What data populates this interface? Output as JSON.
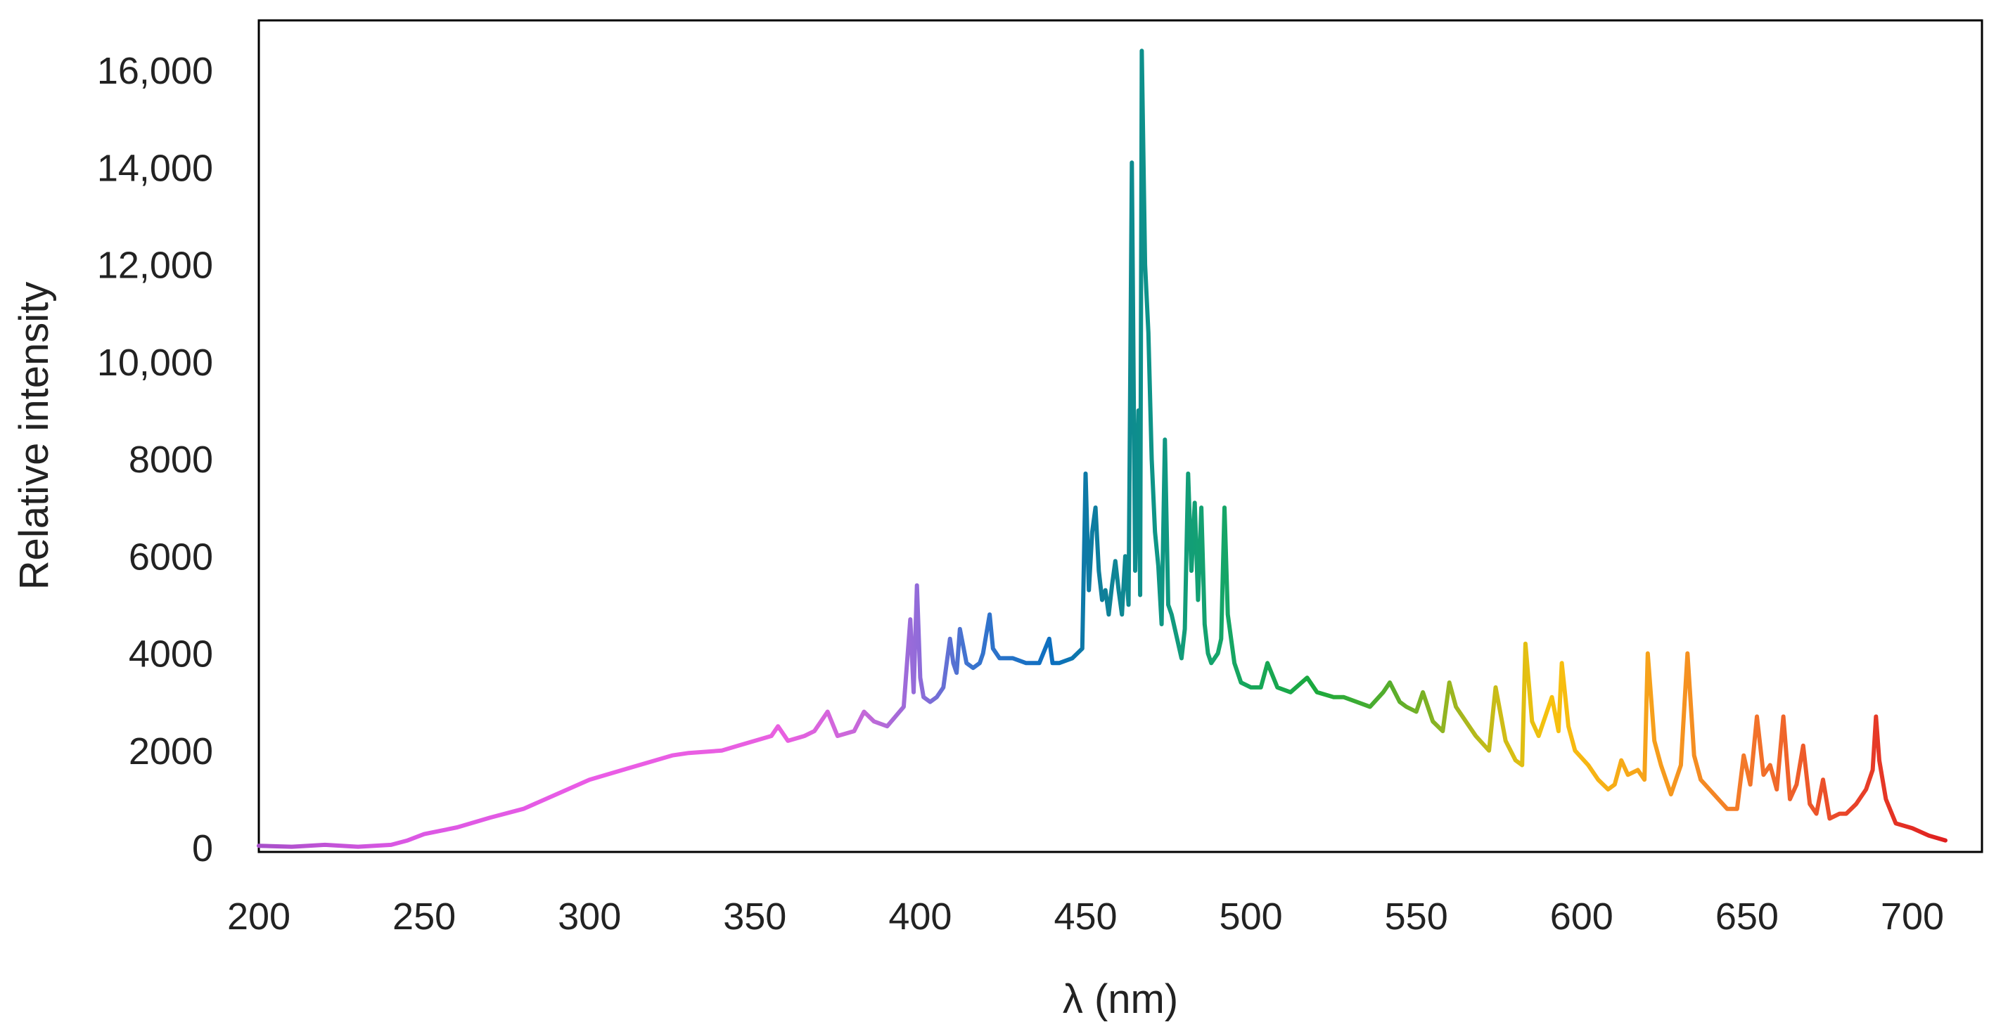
{
  "chart_data": {
    "type": "line",
    "title": "",
    "xlabel": "λ (nm)",
    "ylabel": "Relative intensity",
    "xlim": [
      200,
      710
    ],
    "ylim": [
      0,
      16500
    ],
    "xticks": [
      200,
      250,
      300,
      350,
      400,
      450,
      500,
      550,
      600,
      650,
      700
    ],
    "xtick_labels": [
      "200",
      "250",
      "300",
      "350",
      "400",
      "450",
      "500",
      "550",
      "600",
      "650",
      "700"
    ],
    "yticks": [
      0,
      2000,
      4000,
      6000,
      8000,
      10000,
      12000,
      14000,
      16000
    ],
    "ytick_labels": [
      "0",
      "2000",
      "4000",
      "6000",
      "8000",
      "10,000",
      "12,000",
      "14,000",
      "16,000"
    ],
    "grid": false,
    "legend": "none",
    "color_stops": [
      {
        "x": 200,
        "color": "#a74fc9"
      },
      {
        "x": 240,
        "color": "#d957e3"
      },
      {
        "x": 300,
        "color": "#ea5ce6"
      },
      {
        "x": 360,
        "color": "#e860e0"
      },
      {
        "x": 385,
        "color": "#c06ad8"
      },
      {
        "x": 400,
        "color": "#8f6bd9"
      },
      {
        "x": 415,
        "color": "#3b74cf"
      },
      {
        "x": 440,
        "color": "#0b6fbf"
      },
      {
        "x": 455,
        "color": "#0f7f9a"
      },
      {
        "x": 470,
        "color": "#0e9488"
      },
      {
        "x": 490,
        "color": "#15a56a"
      },
      {
        "x": 520,
        "color": "#1ba93c"
      },
      {
        "x": 545,
        "color": "#5fae2a"
      },
      {
        "x": 570,
        "color": "#bdba1a"
      },
      {
        "x": 590,
        "color": "#f7c20e"
      },
      {
        "x": 620,
        "color": "#f6a21b"
      },
      {
        "x": 650,
        "color": "#f3772a"
      },
      {
        "x": 680,
        "color": "#e9452a"
      },
      {
        "x": 710,
        "color": "#df1f1f"
      }
    ],
    "series": [
      {
        "x": [
          200,
          210,
          220,
          230,
          240,
          245,
          250,
          255,
          260,
          270,
          280,
          290,
          300,
          310,
          320,
          325,
          330,
          340,
          345,
          350,
          355,
          357,
          360,
          365,
          368,
          372,
          375,
          380,
          383,
          386,
          390,
          395,
          397,
          398,
          399,
          400,
          401,
          403,
          405,
          407,
          409,
          410,
          411,
          412,
          414,
          416,
          418,
          419,
          421,
          422,
          424,
          428,
          432,
          436,
          439,
          440,
          442,
          446,
          449,
          450,
          451,
          452,
          453,
          454,
          455,
          456,
          457,
          458,
          459,
          460,
          461,
          462,
          463,
          464,
          465,
          466,
          466.5,
          467,
          468,
          469,
          470,
          471,
          472,
          473,
          474,
          475,
          476,
          477,
          478,
          479,
          480,
          481,
          482,
          483,
          484,
          485,
          486,
          487,
          488,
          490,
          491,
          492,
          493,
          495,
          497,
          500,
          503,
          505,
          508,
          512,
          517,
          520,
          525,
          528,
          532,
          536,
          540,
          542,
          545,
          547,
          550,
          552,
          555,
          558,
          560,
          562,
          565,
          568,
          572,
          574,
          577,
          580,
          582,
          583,
          585,
          587,
          589,
          591,
          593,
          594,
          596,
          598,
          602,
          605,
          608,
          610,
          612,
          614,
          617,
          619,
          620,
          622,
          624,
          627,
          630,
          632,
          634,
          636,
          640,
          644,
          647,
          649,
          651,
          653,
          655,
          657,
          659,
          661,
          663,
          665,
          667,
          669,
          671,
          673,
          675,
          678,
          680,
          683,
          686,
          688,
          689,
          690,
          692,
          695,
          700,
          705,
          710
        ],
        "values": [
          40,
          20,
          60,
          20,
          60,
          150,
          280,
          350,
          420,
          620,
          800,
          1100,
          1400,
          1600,
          1800,
          1900,
          1950,
          2000,
          2100,
          2200,
          2300,
          2500,
          2200,
          2300,
          2400,
          2800,
          2300,
          2400,
          2800,
          2600,
          2500,
          2900,
          4700,
          3200,
          5400,
          3500,
          3100,
          3000,
          3100,
          3300,
          4300,
          3800,
          3600,
          4500,
          3800,
          3700,
          3800,
          4000,
          4800,
          4100,
          3900,
          3900,
          3800,
          3800,
          4300,
          3800,
          3800,
          3900,
          4100,
          7700,
          5300,
          6500,
          7000,
          5700,
          5100,
          5300,
          4800,
          5400,
          5900,
          5300,
          4800,
          6000,
          5000,
          14100,
          5700,
          9000,
          5200,
          16400,
          12000,
          10600,
          8000,
          6500,
          5800,
          4600,
          8400,
          5000,
          4800,
          4500,
          4200,
          3900,
          4500,
          7700,
          5700,
          7100,
          5100,
          7000,
          4600,
          4000,
          3800,
          4000,
          4300,
          7000,
          4800,
          3800,
          3400,
          3300,
          3300,
          3800,
          3300,
          3200,
          3500,
          3200,
          3100,
          3100,
          3000,
          2900,
          3200,
          3400,
          3000,
          2900,
          2800,
          3200,
          2600,
          2400,
          3400,
          2900,
          2600,
          2300,
          2000,
          3300,
          2200,
          1800,
          1700,
          4200,
          2600,
          2300,
          2700,
          3100,
          2400,
          3800,
          2500,
          2000,
          1700,
          1400,
          1200,
          1300,
          1800,
          1500,
          1600,
          1400,
          4000,
          2200,
          1700,
          1100,
          1700,
          4000,
          1900,
          1400,
          1100,
          800,
          800,
          1900,
          1300,
          2700,
          1500,
          1700,
          1200,
          2700,
          1000,
          1300,
          2100,
          900,
          700,
          1400,
          600,
          700,
          700,
          900,
          1200,
          1600,
          2700,
          1800,
          1000,
          500,
          400,
          250,
          150
        ]
      }
    ]
  }
}
